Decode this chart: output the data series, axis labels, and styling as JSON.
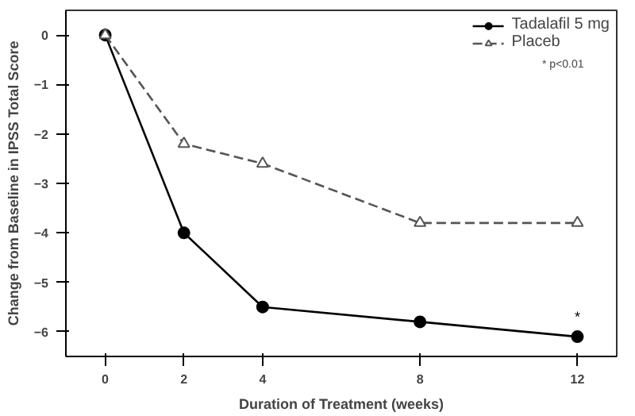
{
  "chart_data": {
    "type": "line",
    "xlabel": "Duration of Treatment (weeks)",
    "ylabel": "Change from Baseline in IPSS Total Score",
    "x": [
      0,
      2,
      4,
      8,
      12
    ],
    "series": [
      {
        "name": "Tadalafil 5 mg",
        "color": "#000000",
        "values": [
          0,
          -4,
          -5.5,
          -5.8,
          -6.1
        ],
        "marker": "circle",
        "line_style": "solid"
      },
      {
        "name": "Placeb",
        "color": "#555555",
        "values": [
          0,
          -2.2,
          -2.6,
          -3.8,
          -3.8
        ],
        "marker": "triangle",
        "line_style": "dashed"
      }
    ],
    "xlim": [
      -1,
      13
    ],
    "ylim": [
      -6.5,
      0.5
    ],
    "xticks": [
      0,
      2,
      4,
      8,
      12
    ],
    "yticks": [
      0,
      -1,
      -2,
      -3,
      -4,
      -5,
      -6
    ],
    "grid": false,
    "legend": "top right",
    "annotations": [
      "* p<0.01",
      {
        "text": "*",
        "x": 12,
        "y": -5.85
      }
    ]
  }
}
